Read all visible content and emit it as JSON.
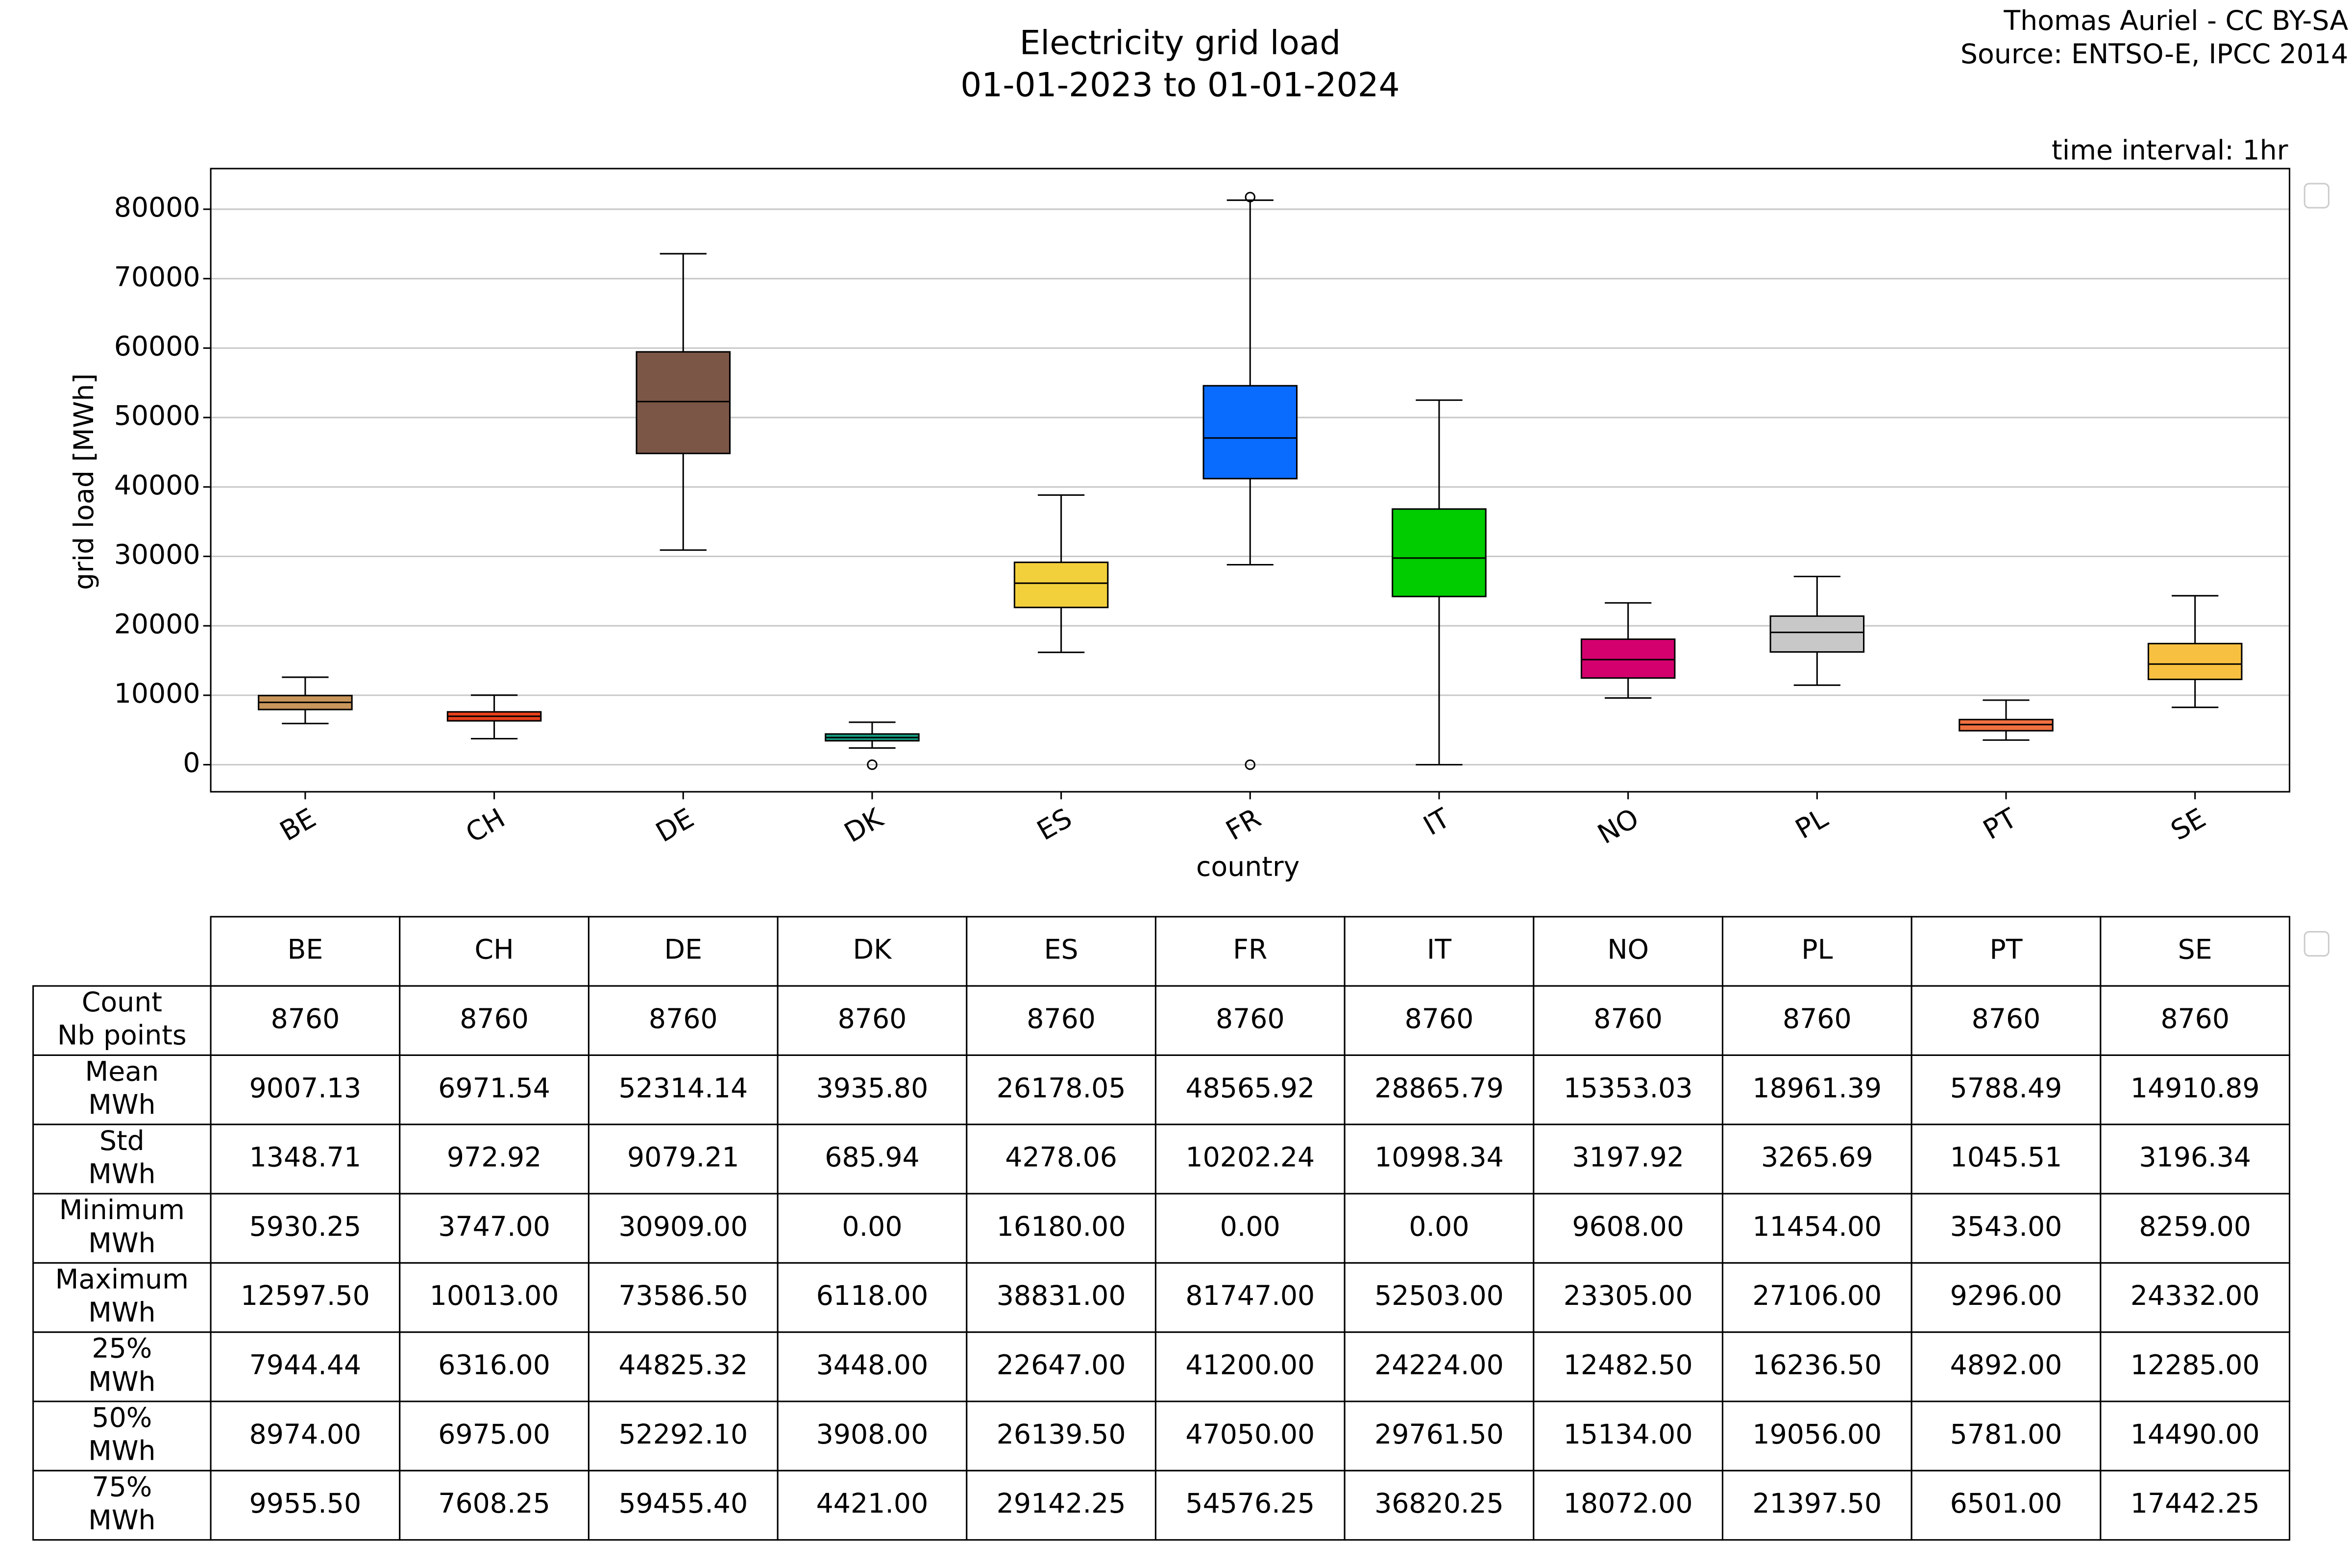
{
  "chart_data": {
    "type": "box",
    "title": "Electricity grid load",
    "subtitle": "01-01-2023 to 01-01-2024",
    "credits": [
      "Thomas Auriel - CC BY-SA",
      "Source: ENTSO-E, IPCC 2014"
    ],
    "annotation": "time interval: 1hr",
    "xlabel": "country",
    "ylabel": "grid load [MWh]",
    "ylim": [
      -3900,
      85850
    ],
    "yticks": [
      0,
      10000,
      20000,
      30000,
      40000,
      50000,
      60000,
      70000,
      80000
    ],
    "grid": true,
    "categories": [
      "BE",
      "CH",
      "DE",
      "DK",
      "ES",
      "FR",
      "IT",
      "NO",
      "PL",
      "PT",
      "SE"
    ],
    "boxes": [
      {
        "whisker_low": 5930.25,
        "q1": 7944.44,
        "median": 8974.0,
        "q3": 9955.5,
        "whisker_high": 12597.5,
        "outliers": [],
        "color": "#c8955a"
      },
      {
        "whisker_low": 3747.0,
        "q1": 6316.0,
        "median": 6975.0,
        "q3": 7608.25,
        "whisker_high": 10013.0,
        "outliers": [],
        "color": "#e8401c"
      },
      {
        "whisker_low": 30909.0,
        "q1": 44825.32,
        "median": 52292.1,
        "q3": 59455.4,
        "whisker_high": 73586.5,
        "outliers": [],
        "color": "#7b5646"
      },
      {
        "whisker_low": 2400,
        "q1": 3448.0,
        "median": 3908.0,
        "q3": 4421.0,
        "whisker_high": 6118.0,
        "outliers": [
          0
        ],
        "color": "#17a085"
      },
      {
        "whisker_low": 16180.0,
        "q1": 22647.0,
        "median": 26139.5,
        "q3": 29142.25,
        "whisker_high": 38831.0,
        "outliers": [],
        "color": "#f2d03b"
      },
      {
        "whisker_low": 28800,
        "q1": 41200.0,
        "median": 47050.0,
        "q3": 54576.25,
        "whisker_high": 81300,
        "outliers": [
          0,
          81747
        ],
        "color": "#0a6cff"
      },
      {
        "whisker_low": 0,
        "q1": 24224.0,
        "median": 29761.5,
        "q3": 36820.25,
        "whisker_high": 52503.0,
        "outliers": [],
        "color": "#00cc00"
      },
      {
        "whisker_low": 9608.0,
        "q1": 12482.5,
        "median": 15134.0,
        "q3": 18072.0,
        "whisker_high": 23305.0,
        "outliers": [],
        "color": "#d4006e"
      },
      {
        "whisker_low": 11454.0,
        "q1": 16236.5,
        "median": 19056.0,
        "q3": 21397.5,
        "whisker_high": 27106.0,
        "outliers": [],
        "color": "#c8c8c8"
      },
      {
        "whisker_low": 3543.0,
        "q1": 4892.0,
        "median": 5781.0,
        "q3": 6501.0,
        "whisker_high": 9296.0,
        "outliers": [],
        "color": "#f07040"
      },
      {
        "whisker_low": 8259.0,
        "q1": 12285.0,
        "median": 14490.0,
        "q3": 17442.25,
        "whisker_high": 24332.0,
        "outliers": [],
        "color": "#f8c040"
      }
    ]
  },
  "table": {
    "columns": [
      "BE",
      "CH",
      "DE",
      "DK",
      "ES",
      "FR",
      "IT",
      "NO",
      "PL",
      "PT",
      "SE"
    ],
    "rows": [
      {
        "label": [
          "Count",
          "Nb points"
        ],
        "cells": [
          "8760",
          "8760",
          "8760",
          "8760",
          "8760",
          "8760",
          "8760",
          "8760",
          "8760",
          "8760",
          "8760"
        ]
      },
      {
        "label": [
          "Mean",
          "MWh"
        ],
        "cells": [
          "9007.13",
          "6971.54",
          "52314.14",
          "3935.80",
          "26178.05",
          "48565.92",
          "28865.79",
          "15353.03",
          "18961.39",
          "5788.49",
          "14910.89"
        ]
      },
      {
        "label": [
          "Std",
          "MWh"
        ],
        "cells": [
          "1348.71",
          "972.92",
          "9079.21",
          "685.94",
          "4278.06",
          "10202.24",
          "10998.34",
          "3197.92",
          "3265.69",
          "1045.51",
          "3196.34"
        ]
      },
      {
        "label": [
          "Minimum",
          "MWh"
        ],
        "cells": [
          "5930.25",
          "3747.00",
          "30909.00",
          "0.00",
          "16180.00",
          "0.00",
          "0.00",
          "9608.00",
          "11454.00",
          "3543.00",
          "8259.00"
        ]
      },
      {
        "label": [
          "Maximum",
          "MWh"
        ],
        "cells": [
          "12597.50",
          "10013.00",
          "73586.50",
          "6118.00",
          "38831.00",
          "81747.00",
          "52503.00",
          "23305.00",
          "27106.00",
          "9296.00",
          "24332.00"
        ]
      },
      {
        "label": [
          "25%",
          "MWh"
        ],
        "cells": [
          "7944.44",
          "6316.00",
          "44825.32",
          "3448.00",
          "22647.00",
          "41200.00",
          "24224.00",
          "12482.50",
          "16236.50",
          "4892.00",
          "12285.00"
        ]
      },
      {
        "label": [
          "50%",
          "MWh"
        ],
        "cells": [
          "8974.00",
          "6975.00",
          "52292.10",
          "3908.00",
          "26139.50",
          "47050.00",
          "29761.50",
          "15134.00",
          "19056.00",
          "5781.00",
          "14490.00"
        ]
      },
      {
        "label": [
          "75%",
          "MWh"
        ],
        "cells": [
          "9955.50",
          "7608.25",
          "59455.40",
          "4421.00",
          "29142.25",
          "54576.25",
          "36820.25",
          "18072.00",
          "21397.50",
          "6501.00",
          "17442.25"
        ]
      }
    ]
  }
}
